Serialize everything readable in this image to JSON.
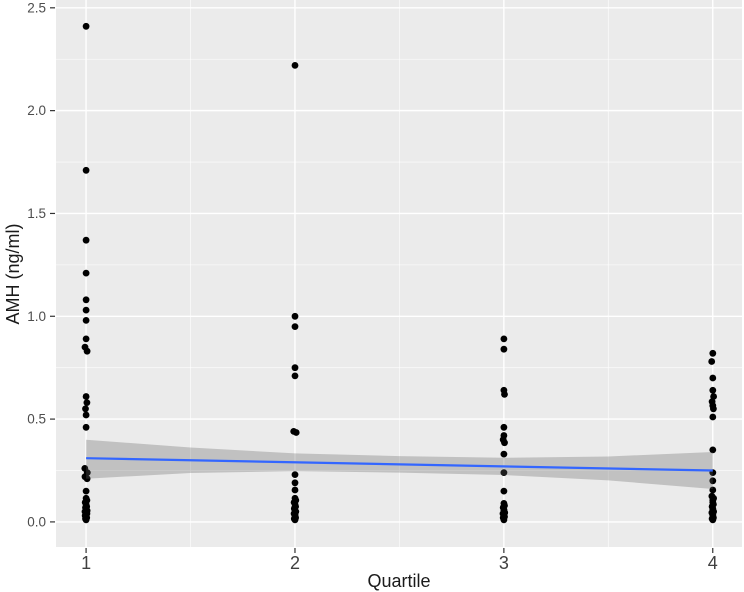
{
  "chart_data": {
    "type": "scatter",
    "title": "",
    "xlabel": "Quartile",
    "ylabel": "AMH (ng/ml)",
    "xlim": [
      0.856,
      4.14
    ],
    "ylim": [
      -0.122,
      2.538
    ],
    "x_ticks": [
      1,
      2,
      3,
      4
    ],
    "x_tick_labels": [
      "1",
      "2",
      "3",
      "4"
    ],
    "y_ticks": [
      0.0,
      0.5,
      1.0,
      1.5,
      2.0,
      2.5
    ],
    "y_tick_labels": [
      "0.0",
      "0.5",
      "1.0",
      "1.5",
      "2.0",
      "2.5"
    ],
    "x_minor": [
      1.5,
      2.5,
      3.5
    ],
    "y_minor": [
      0.25,
      0.75,
      1.25,
      1.75,
      2.25
    ],
    "grid": true,
    "legend": "none",
    "style": {
      "outer_bg": "#FFFFFF",
      "panel_bg": "#EBEBEB",
      "grid_major": "#FFFFFF",
      "grid_minor": "#FFFFFF",
      "point_color": "#000000",
      "smooth_line_color": "#3366FF",
      "smooth_band_color": "rgba(96,96,96,0.30)",
      "axis_text_color": "#4D4D4D",
      "x_axis_text_color": "#404040",
      "axis_title_color": "#1A1A1A",
      "tick_mark_color": "#333333"
    },
    "series": [
      {
        "name": "AMH observations by quartile",
        "type": "points",
        "color": "#000000",
        "points": [
          [
            1,
            2.41
          ],
          [
            1,
            1.71
          ],
          [
            1,
            1.37
          ],
          [
            1,
            1.21
          ],
          [
            1,
            1.08
          ],
          [
            1,
            1.03
          ],
          [
            1,
            0.98
          ],
          [
            1,
            0.89
          ],
          [
            0.995,
            0.85
          ],
          [
            1.005,
            0.83
          ],
          [
            1,
            0.61
          ],
          [
            1.004,
            0.58
          ],
          [
            0.997,
            0.55
          ],
          [
            1,
            0.52
          ],
          [
            1,
            0.46
          ],
          [
            0.994,
            0.26
          ],
          [
            1.006,
            0.24
          ],
          [
            0.995,
            0.22
          ],
          [
            1.005,
            0.21
          ],
          [
            1,
            0.15
          ],
          [
            1,
            0.115
          ],
          [
            1.004,
            0.105
          ],
          [
            0.996,
            0.095
          ],
          [
            1,
            0.085
          ],
          [
            1.003,
            0.075
          ],
          [
            0.997,
            0.07
          ],
          [
            1,
            0.06
          ],
          [
            1.005,
            0.055
          ],
          [
            0.995,
            0.05
          ],
          [
            1,
            0.045
          ],
          [
            1.004,
            0.04
          ],
          [
            0.996,
            0.03
          ],
          [
            1,
            0.025
          ],
          [
            1.003,
            0.02
          ],
          [
            0.997,
            0.015
          ],
          [
            1,
            0.01
          ],
          [
            2,
            2.22
          ],
          [
            2,
            1.0
          ],
          [
            2,
            0.95
          ],
          [
            2,
            0.75
          ],
          [
            2,
            0.71
          ],
          [
            1.994,
            0.44
          ],
          [
            2.006,
            0.435
          ],
          [
            2,
            0.23
          ],
          [
            2,
            0.19
          ],
          [
            2,
            0.155
          ],
          [
            2,
            0.115
          ],
          [
            2.004,
            0.105
          ],
          [
            1.996,
            0.095
          ],
          [
            2,
            0.085
          ],
          [
            2.003,
            0.075
          ],
          [
            1.997,
            0.065
          ],
          [
            2,
            0.055
          ],
          [
            2.004,
            0.05
          ],
          [
            1.996,
            0.04
          ],
          [
            2,
            0.035
          ],
          [
            2,
            0.03
          ],
          [
            2.003,
            0.02
          ],
          [
            1.997,
            0.015
          ],
          [
            2,
            0.01
          ],
          [
            3,
            0.89
          ],
          [
            3,
            0.84
          ],
          [
            3,
            0.64
          ],
          [
            3.003,
            0.62
          ],
          [
            3,
            0.46
          ],
          [
            3,
            0.42
          ],
          [
            2.997,
            0.4
          ],
          [
            3.003,
            0.385
          ],
          [
            3,
            0.33
          ],
          [
            3,
            0.24
          ],
          [
            3,
            0.15
          ],
          [
            3,
            0.09
          ],
          [
            3.003,
            0.08
          ],
          [
            2.997,
            0.07
          ],
          [
            3,
            0.06
          ],
          [
            3,
            0.055
          ],
          [
            3.004,
            0.045
          ],
          [
            2.996,
            0.04
          ],
          [
            3,
            0.03
          ],
          [
            3.003,
            0.025
          ],
          [
            2.997,
            0.02
          ],
          [
            3,
            0.01
          ],
          [
            4,
            0.82
          ],
          [
            3.995,
            0.78
          ],
          [
            4,
            0.7
          ],
          [
            4,
            0.64
          ],
          [
            4.004,
            0.61
          ],
          [
            3.997,
            0.585
          ],
          [
            4,
            0.565
          ],
          [
            4.003,
            0.55
          ],
          [
            4,
            0.51
          ],
          [
            4,
            0.35
          ],
          [
            4,
            0.24
          ],
          [
            4,
            0.2
          ],
          [
            4,
            0.155
          ],
          [
            3.996,
            0.125
          ],
          [
            4.004,
            0.115
          ],
          [
            4,
            0.105
          ],
          [
            4,
            0.095
          ],
          [
            4.003,
            0.085
          ],
          [
            3.997,
            0.075
          ],
          [
            4,
            0.065
          ],
          [
            4,
            0.06
          ],
          [
            4.004,
            0.05
          ],
          [
            3.996,
            0.045
          ],
          [
            4,
            0.035
          ],
          [
            4,
            0.03
          ],
          [
            4.003,
            0.02
          ],
          [
            3.997,
            0.015
          ],
          [
            4,
            0.01
          ]
        ]
      }
    ],
    "smooth": {
      "name": "linear fit with 95% confidence band",
      "line": {
        "x": [
          1,
          4
        ],
        "y": [
          0.31,
          0.25
        ]
      },
      "band": {
        "x": [
          1,
          1.5,
          2,
          2.5,
          3,
          3.5,
          4
        ],
        "hi": [
          0.4,
          0.362,
          0.333,
          0.32,
          0.312,
          0.318,
          0.34
        ],
        "lo": [
          0.21,
          0.238,
          0.247,
          0.24,
          0.228,
          0.202,
          0.16
        ]
      }
    }
  }
}
